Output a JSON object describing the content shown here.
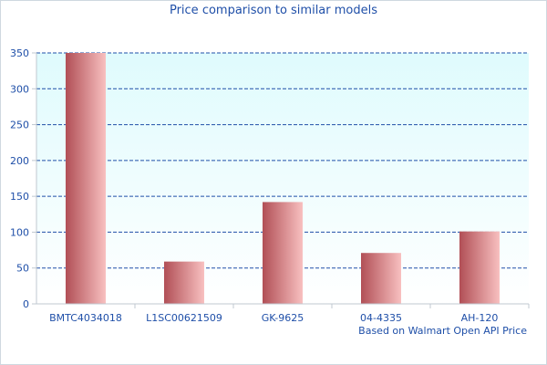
{
  "chart_data": {
    "type": "bar",
    "title": "Price comparison to similar models",
    "categories": [
      "BMTC4034018",
      "L1SC00621509",
      "GK-9625",
      "04-4335",
      "AH-120"
    ],
    "values": [
      350,
      59,
      142,
      71,
      101
    ],
    "ylim": [
      0,
      350
    ],
    "yticks": [
      "0",
      "50",
      "100",
      "150",
      "200",
      "250",
      "300",
      "350"
    ],
    "xlabel": "",
    "ylabel": "",
    "grid": true,
    "footnote": "Based on Walmart Open API Price",
    "colors": {
      "plot_bg_top": "#dffbfd",
      "plot_bg_bottom": "#ffffff",
      "bar_dark": "#b14f56",
      "bar_light": "#f8c0c0",
      "grid": "#1f4fa8",
      "axis_text": "#1f4fa8"
    }
  }
}
